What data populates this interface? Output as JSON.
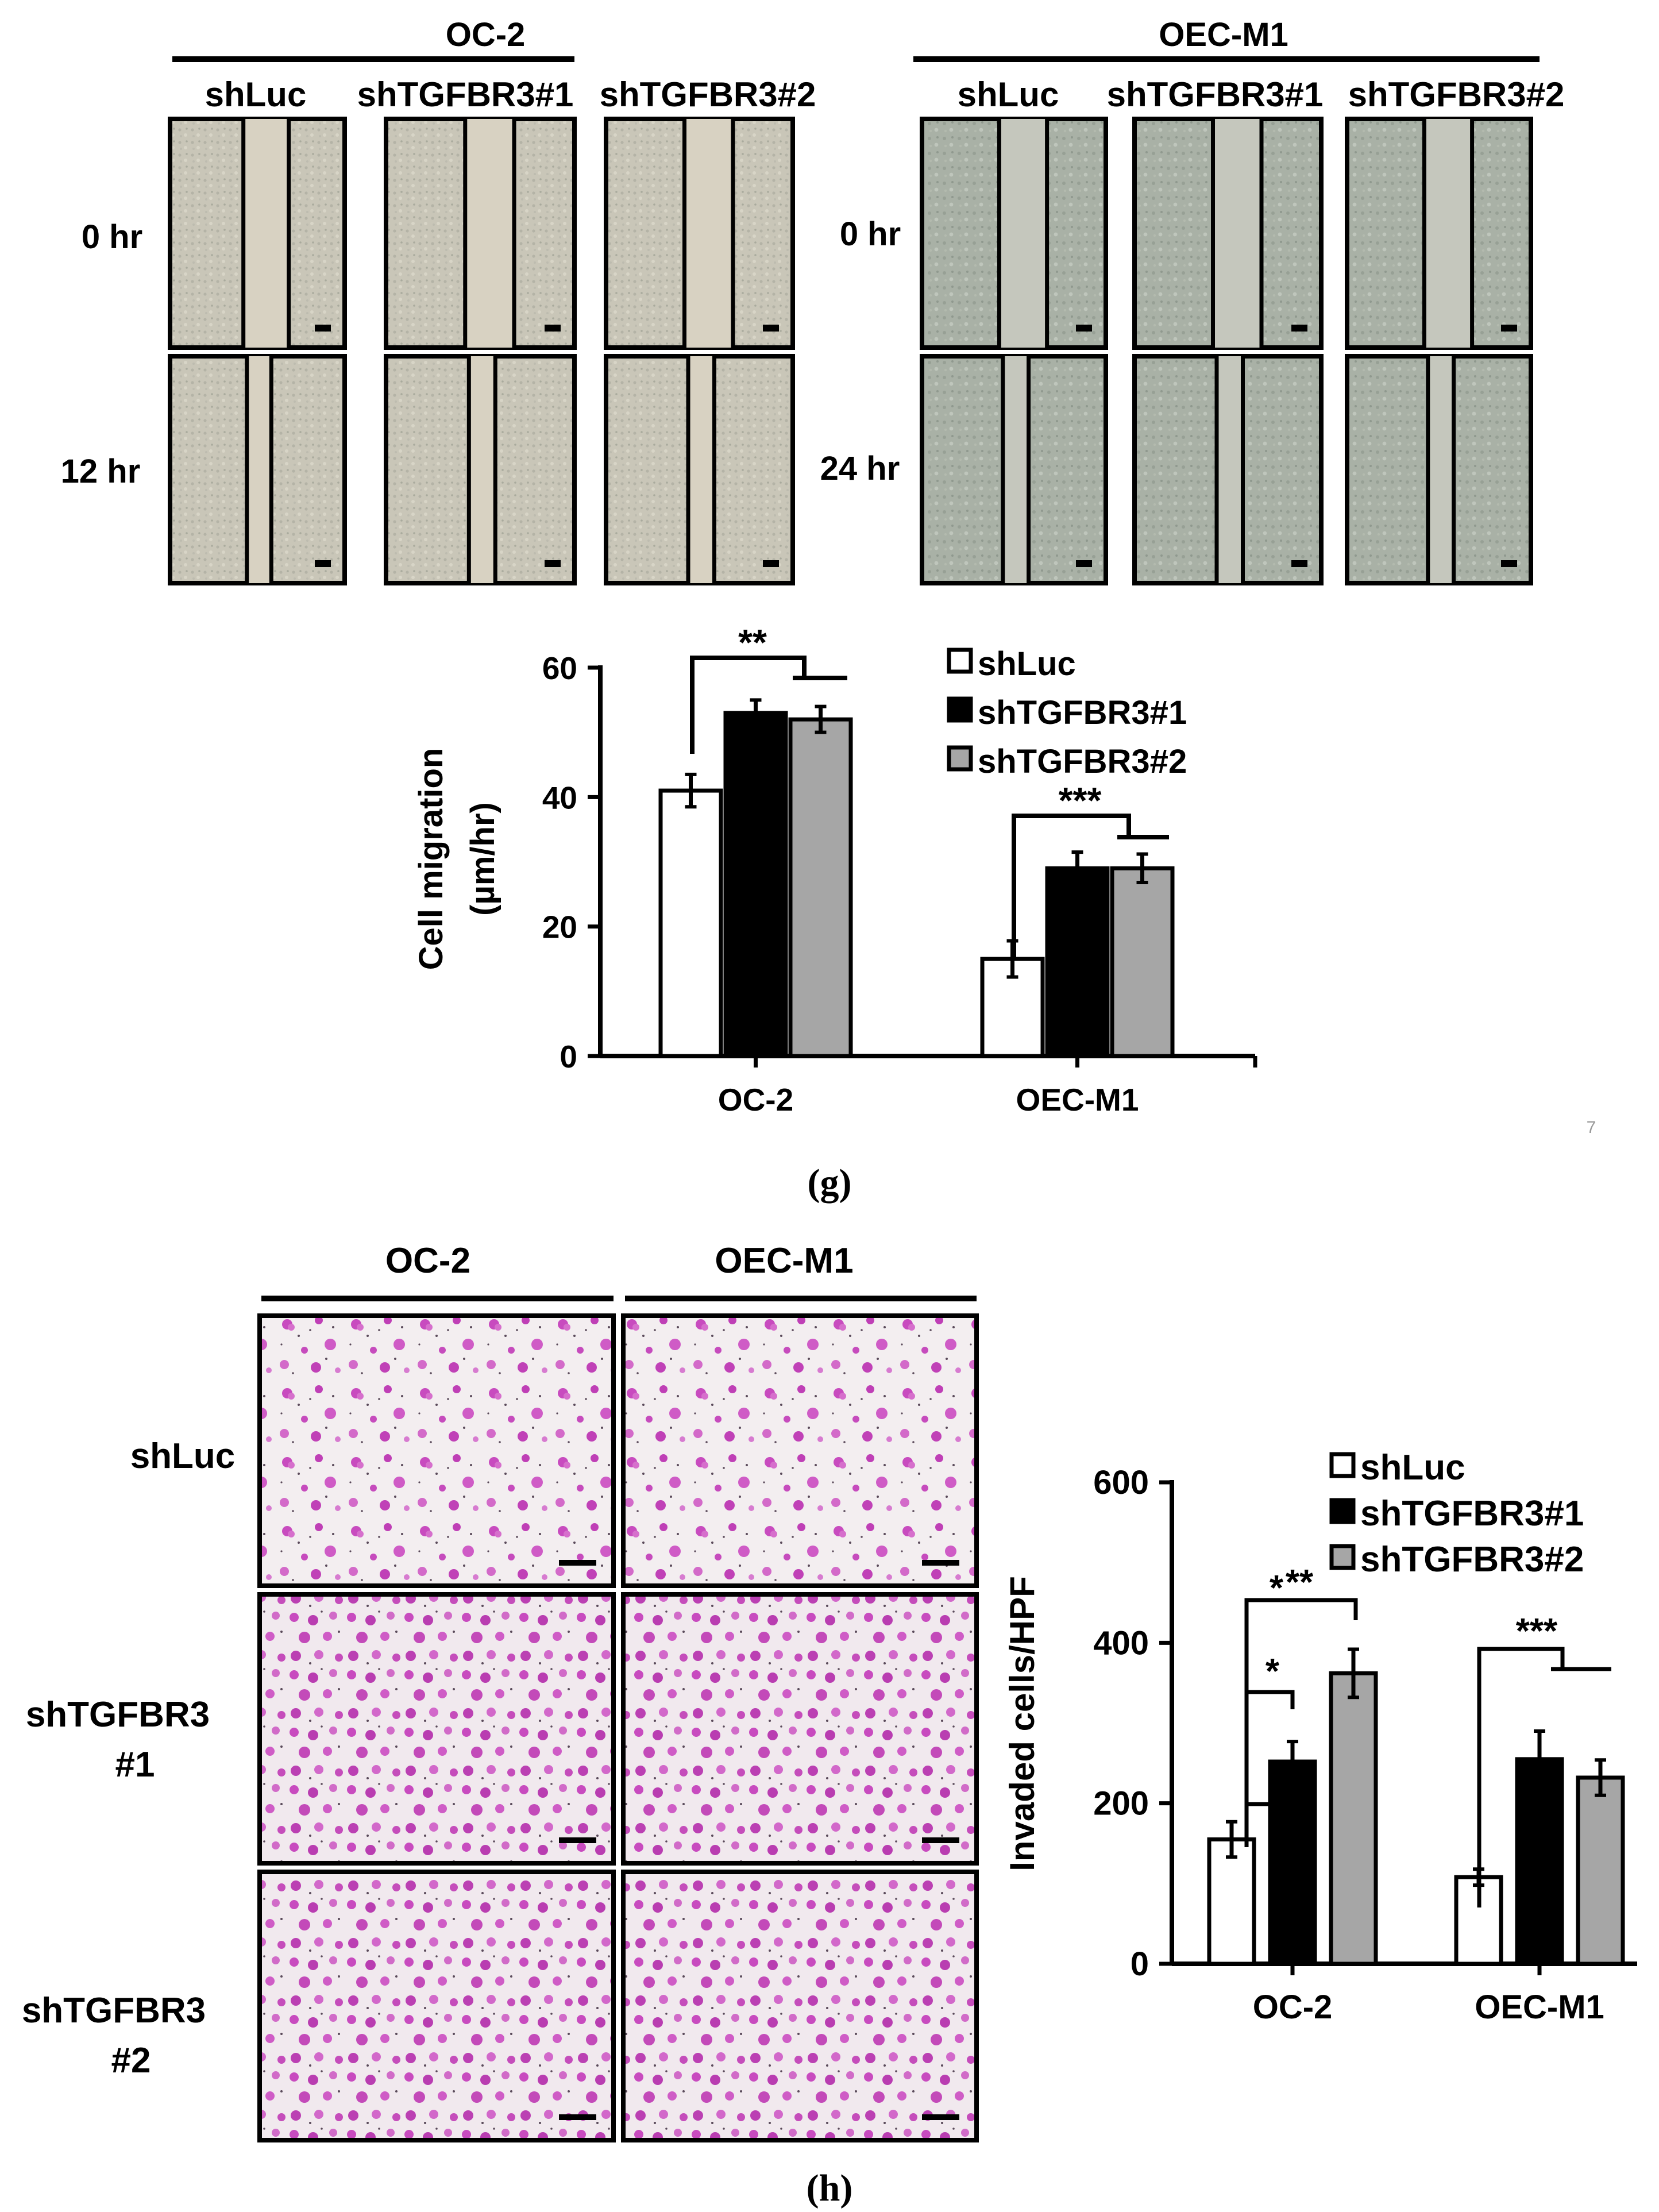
{
  "panel_g": {
    "cell_lines": [
      "OC-2",
      "OEC-M1"
    ],
    "conditions": [
      "shLuc",
      "shTGFBR3#1",
      "shTGFBR3#2"
    ],
    "oc2_timepoints": [
      "0 hr",
      "12 hr"
    ],
    "oecm1_timepoints": [
      "0 hr",
      "24 hr"
    ],
    "caption": "(g)",
    "page_mark": "7"
  },
  "panel_h": {
    "cell_lines": [
      "OC-2",
      "OEC-M1"
    ],
    "row_labels": [
      [
        "shLuc"
      ],
      [
        "shTGFBR3",
        "#1"
      ],
      [
        "shTGFBR3",
        "#2"
      ]
    ],
    "caption": "(h)"
  },
  "colors": {
    "shLuc": "#ffffff",
    "shTGFBR3#1": "#000000",
    "shTGFBR3#2": "#a6a6a6",
    "stain": "#c040b8",
    "micro_bg": "#f3eef0"
  },
  "chart_data": [
    {
      "type": "bar",
      "categories": [
        "OC-2",
        "OEC-M1"
      ],
      "series": [
        {
          "name": "shLuc",
          "values": [
            41,
            15
          ],
          "errors": [
            2.5,
            2.8
          ]
        },
        {
          "name": "shTGFBR3#1",
          "values": [
            53,
            29
          ],
          "errors": [
            2,
            2.5
          ]
        },
        {
          "name": "shTGFBR3#2",
          "values": [
            52,
            29
          ],
          "errors": [
            2,
            2.2
          ]
        }
      ],
      "ylabel": [
        "Cell migration",
        "(µm/hr)"
      ],
      "xlabel": "",
      "ylim": [
        0,
        60
      ],
      "yticks": [
        0,
        20,
        40,
        60
      ],
      "significance": [
        "**",
        "***"
      ],
      "legend": "top-right"
    },
    {
      "type": "bar",
      "categories": [
        "OC-2",
        "OEC-M1"
      ],
      "series": [
        {
          "name": "shLuc",
          "values": [
            155,
            108
          ],
          "errors": [
            22,
            10
          ]
        },
        {
          "name": "shTGFBR3#1",
          "values": [
            252,
            255
          ],
          "errors": [
            25,
            35
          ]
        },
        {
          "name": "shTGFBR3#2",
          "values": [
            362,
            232
          ],
          "errors": [
            30,
            22
          ]
        }
      ],
      "ylabel": [
        "Invaded cells/HPF"
      ],
      "xlabel": "",
      "ylim": [
        0,
        600
      ],
      "yticks": [
        0,
        200,
        400,
        600
      ],
      "significance": [
        "*",
        "**",
        "***"
      ],
      "legend": "top-right"
    }
  ]
}
